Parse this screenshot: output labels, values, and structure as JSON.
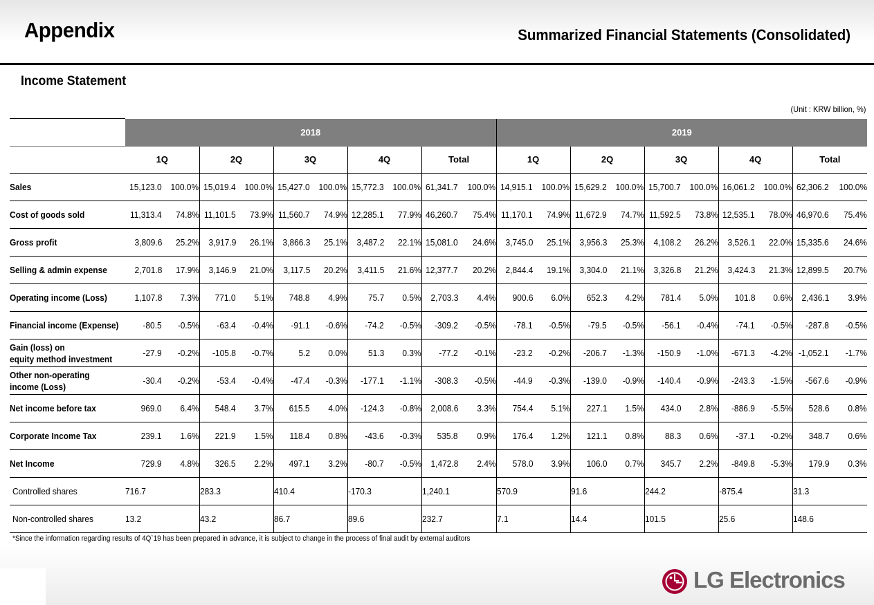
{
  "header": {
    "title": "Appendix",
    "subtitle": "Summarized Financial Statements (Consolidated)"
  },
  "section_title": "Income Statement",
  "unit_note": "(Unit : KRW billion, %)",
  "years": [
    "2018",
    "2019"
  ],
  "quarters": [
    "1Q",
    "2Q",
    "3Q",
    "4Q",
    "Total",
    "1Q",
    "2Q",
    "3Q",
    "4Q",
    "Total"
  ],
  "rows": [
    {
      "label": "Sales",
      "cells": [
        [
          "15,123.0",
          "100.0%"
        ],
        [
          "15,019.4",
          "100.0%"
        ],
        [
          "15,427.0",
          "100.0%"
        ],
        [
          "15,772.3",
          "100.0%"
        ],
        [
          "61,341.7",
          "100.0%"
        ],
        [
          "14,915.1",
          "100.0%"
        ],
        [
          "15,629.2",
          "100.0%"
        ],
        [
          "15,700.7",
          "100.0%"
        ],
        [
          "16,061.2",
          "100.0%"
        ],
        [
          "62,306.2",
          "100.0%"
        ]
      ]
    },
    {
      "label": "Cost of goods sold",
      "cells": [
        [
          "11,313.4",
          "74.8%"
        ],
        [
          "11,101.5",
          "73.9%"
        ],
        [
          "11,560.7",
          "74.9%"
        ],
        [
          "12,285.1",
          "77.9%"
        ],
        [
          "46,260.7",
          "75.4%"
        ],
        [
          "11,170.1",
          "74.9%"
        ],
        [
          "11,672.9",
          "74.7%"
        ],
        [
          "11,592.5",
          "73.8%"
        ],
        [
          "12,535.1",
          "78.0%"
        ],
        [
          "46,970.6",
          "75.4%"
        ]
      ]
    },
    {
      "label": "Gross profit",
      "cells": [
        [
          "3,809.6",
          "25.2%"
        ],
        [
          "3,917.9",
          "26.1%"
        ],
        [
          "3,866.3",
          "25.1%"
        ],
        [
          "3,487.2",
          "22.1%"
        ],
        [
          "15,081.0",
          "24.6%"
        ],
        [
          "3,745.0",
          "25.1%"
        ],
        [
          "3,956.3",
          "25.3%"
        ],
        [
          "4,108.2",
          "26.2%"
        ],
        [
          "3,526.1",
          "22.0%"
        ],
        [
          "15,335.6",
          "24.6%"
        ]
      ]
    },
    {
      "label": "Selling & admin expense",
      "cells": [
        [
          "2,701.8",
          "17.9%"
        ],
        [
          "3,146.9",
          "21.0%"
        ],
        [
          "3,117.5",
          "20.2%"
        ],
        [
          "3,411.5",
          "21.6%"
        ],
        [
          "12,377.7",
          "20.2%"
        ],
        [
          "2,844.4",
          "19.1%"
        ],
        [
          "3,304.0",
          "21.1%"
        ],
        [
          "3,326.8",
          "21.2%"
        ],
        [
          "3,424.3",
          "21.3%"
        ],
        [
          "12,899.5",
          "20.7%"
        ]
      ]
    },
    {
      "label": "Operating income (Loss)",
      "cells": [
        [
          "1,107.8",
          "7.3%"
        ],
        [
          "771.0",
          "5.1%"
        ],
        [
          "748.8",
          "4.9%"
        ],
        [
          "75.7",
          "0.5%"
        ],
        [
          "2,703.3",
          "4.4%"
        ],
        [
          "900.6",
          "6.0%"
        ],
        [
          "652.3",
          "4.2%"
        ],
        [
          "781.4",
          "5.0%"
        ],
        [
          "101.8",
          "0.6%"
        ],
        [
          "2,436.1",
          "3.9%"
        ]
      ]
    },
    {
      "label": "Financial income (Expense)",
      "cells": [
        [
          "-80.5",
          "-0.5%"
        ],
        [
          "-63.4",
          "-0.4%"
        ],
        [
          "-91.1",
          "-0.6%"
        ],
        [
          "-74.2",
          "-0.5%"
        ],
        [
          "-309.2",
          "-0.5%"
        ],
        [
          "-78.1",
          "-0.5%"
        ],
        [
          "-79.5",
          "-0.5%"
        ],
        [
          "-56.1",
          "-0.4%"
        ],
        [
          "-74.1",
          "-0.5%"
        ],
        [
          "-287.8",
          "-0.5%"
        ]
      ]
    },
    {
      "label": "Gain (loss) on",
      "label2": "equity method investment",
      "cells": [
        [
          "-27.9",
          "-0.2%"
        ],
        [
          "-105.8",
          "-0.7%"
        ],
        [
          "5.2",
          "0.0%"
        ],
        [
          "51.3",
          "0.3%"
        ],
        [
          "-77.2",
          "-0.1%"
        ],
        [
          "-23.2",
          "-0.2%"
        ],
        [
          "-206.7",
          "-1.3%"
        ],
        [
          "-150.9",
          "-1.0%"
        ],
        [
          "-671.3",
          "-4.2%"
        ],
        [
          "-1,052.1",
          "-1.7%"
        ]
      ]
    },
    {
      "label": "Other non-operating",
      "label2": "income (Loss)",
      "cells": [
        [
          "-30.4",
          "-0.2%"
        ],
        [
          "-53.4",
          "-0.4%"
        ],
        [
          "-47.4",
          "-0.3%"
        ],
        [
          "-177.1",
          "-1.1%"
        ],
        [
          "-308.3",
          "-0.5%"
        ],
        [
          "-44.9",
          "-0.3%"
        ],
        [
          "-139.0",
          "-0.9%"
        ],
        [
          "-140.4",
          "-0.9%"
        ],
        [
          "-243.3",
          "-1.5%"
        ],
        [
          "-567.6",
          "-0.9%"
        ]
      ]
    },
    {
      "label": "Net income before tax",
      "cells": [
        [
          "969.0",
          "6.4%"
        ],
        [
          "548.4",
          "3.7%"
        ],
        [
          "615.5",
          "4.0%"
        ],
        [
          "-124.3",
          "-0.8%"
        ],
        [
          "2,008.6",
          "3.3%"
        ],
        [
          "754.4",
          "5.1%"
        ],
        [
          "227.1",
          "1.5%"
        ],
        [
          "434.0",
          "2.8%"
        ],
        [
          "-886.9",
          "-5.5%"
        ],
        [
          "528.6",
          "0.8%"
        ]
      ]
    },
    {
      "label": "Corporate Income Tax",
      "cells": [
        [
          "239.1",
          "1.6%"
        ],
        [
          "221.9",
          "1.5%"
        ],
        [
          "118.4",
          "0.8%"
        ],
        [
          "-43.6",
          "-0.3%"
        ],
        [
          "535.8",
          "0.9%"
        ],
        [
          "176.4",
          "1.2%"
        ],
        [
          "121.1",
          "0.8%"
        ],
        [
          "88.3",
          "0.6%"
        ],
        [
          "-37.1",
          "-0.2%"
        ],
        [
          "348.7",
          "0.6%"
        ]
      ]
    },
    {
      "label": "Net Income",
      "cells": [
        [
          "729.9",
          "4.8%"
        ],
        [
          "326.5",
          "2.2%"
        ],
        [
          "497.1",
          "3.2%"
        ],
        [
          "-80.7",
          "-0.5%"
        ],
        [
          "1,472.8",
          "2.4%"
        ],
        [
          "578.0",
          "3.9%"
        ],
        [
          "106.0",
          "0.7%"
        ],
        [
          "345.7",
          "2.2%"
        ],
        [
          "-849.8",
          "-5.3%"
        ],
        [
          "179.9",
          "0.3%"
        ]
      ]
    }
  ],
  "sub_rows": [
    {
      "label": "Controlled shares",
      "values": [
        "716.7",
        "283.3",
        "410.4",
        "-170.3",
        "1,240.1",
        "570.9",
        "91.6",
        "244.2",
        "-875.4",
        "31.3"
      ]
    },
    {
      "label": "Non-controlled shares",
      "values": [
        "13.2",
        "43.2",
        "86.7",
        "89.6",
        "232.7",
        "7.1",
        "14.4",
        "101.5",
        "25.6",
        "148.6"
      ]
    }
  ],
  "footnote": "*Since the information regarding results of 4Q`19 has been prepared in advance, it is subject to change in the process of final audit by external auditors",
  "logo": {
    "text": "LG Electronics",
    "brand_color": "#a50034",
    "text_color": "#6b6b6b"
  }
}
